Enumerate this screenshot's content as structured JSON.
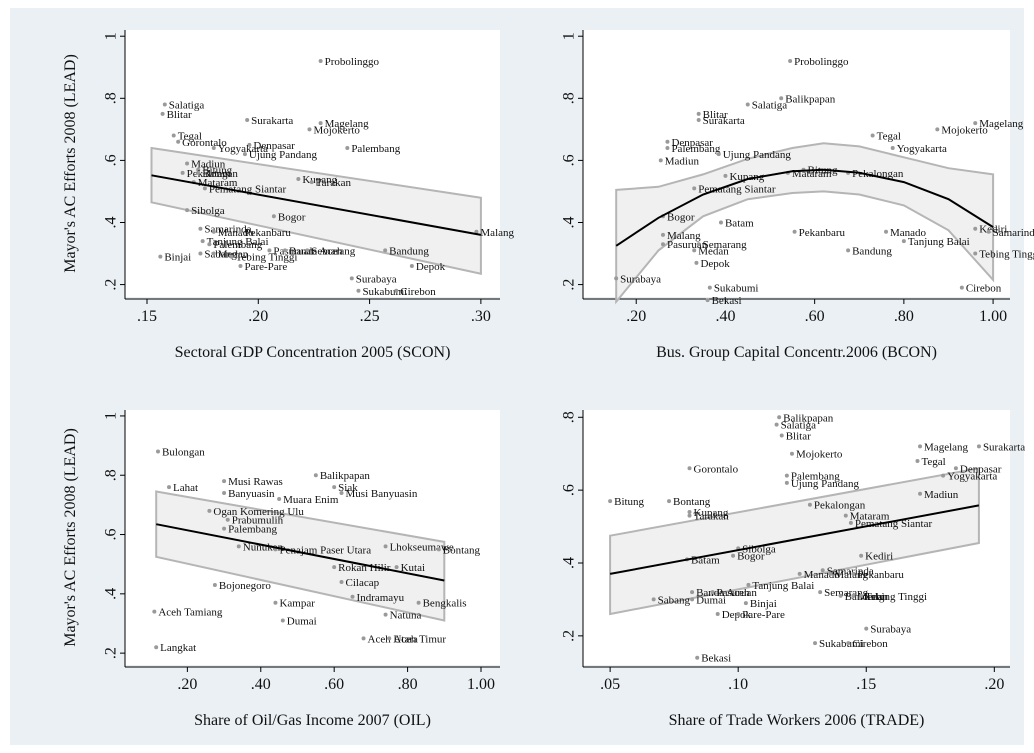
{
  "ylabel": "Mayor's AC Efforts 2008 (LEAD)",
  "chart_data": [
    {
      "type": "scatter",
      "xlabel": "Sectoral GDP Concentration 2005 (SCON)",
      "ylabel": "Mayor's AC Efforts 2008 (LEAD)",
      "xlim": [
        0.15,
        0.305
      ],
      "ylim": [
        0.16,
        1.02
      ],
      "xticks": [
        0.15,
        0.2,
        0.25,
        0.3
      ],
      "xtick_labels": [
        ".15",
        ".20",
        ".25",
        ".30"
      ],
      "yticks": [
        0.2,
        0.4,
        0.6,
        0.8,
        1.0
      ],
      "ytick_labels": [
        ".2",
        ".4",
        ".6",
        ".8",
        "1"
      ],
      "fit": "linear",
      "fit_line": [
        [
          0.152,
          0.552
        ],
        [
          0.3,
          0.36
        ]
      ],
      "ci_upper": [
        [
          0.152,
          0.64
        ],
        [
          0.3,
          0.48
        ]
      ],
      "ci_lower": [
        [
          0.152,
          0.465
        ],
        [
          0.3,
          0.235
        ]
      ],
      "points": [
        {
          "x": 0.228,
          "y": 0.92,
          "label": "Probolinggo"
        },
        {
          "x": 0.158,
          "y": 0.78,
          "label": "Salatiga"
        },
        {
          "x": 0.157,
          "y": 0.75,
          "label": "Blitar"
        },
        {
          "x": 0.195,
          "y": 0.73,
          "label": "Surakarta"
        },
        {
          "x": 0.228,
          "y": 0.72,
          "label": "Magelang"
        },
        {
          "x": 0.223,
          "y": 0.7,
          "label": "Mojokerto"
        },
        {
          "x": 0.162,
          "y": 0.68,
          "label": "Tegal"
        },
        {
          "x": 0.164,
          "y": 0.66,
          "label": "Gorontalo"
        },
        {
          "x": 0.196,
          "y": 0.65,
          "label": "Denpasar"
        },
        {
          "x": 0.18,
          "y": 0.64,
          "label": "Yogyakarta"
        },
        {
          "x": 0.24,
          "y": 0.64,
          "label": "Palembang"
        },
        {
          "x": 0.194,
          "y": 0.62,
          "label": "Ujung Pandang"
        },
        {
          "x": 0.168,
          "y": 0.59,
          "label": "Madiun"
        },
        {
          "x": 0.173,
          "y": 0.57,
          "label": "Bitung"
        },
        {
          "x": 0.166,
          "y": 0.56,
          "label": "Pekalongan"
        },
        {
          "x": 0.173,
          "y": 0.56,
          "label": "Batam"
        },
        {
          "x": 0.218,
          "y": 0.54,
          "label": "Kupang"
        },
        {
          "x": 0.224,
          "y": 0.53,
          "label": "Tarakan"
        },
        {
          "x": 0.171,
          "y": 0.53,
          "label": "Mataram"
        },
        {
          "x": 0.176,
          "y": 0.51,
          "label": "Pematang Siantar"
        },
        {
          "x": 0.168,
          "y": 0.44,
          "label": "Sibolga"
        },
        {
          "x": 0.207,
          "y": 0.42,
          "label": "Bogor"
        },
        {
          "x": 0.174,
          "y": 0.38,
          "label": "Samarinda"
        },
        {
          "x": 0.18,
          "y": 0.37,
          "label": "Manado"
        },
        {
          "x": 0.192,
          "y": 0.37,
          "label": "Pekanbaru"
        },
        {
          "x": 0.175,
          "y": 0.34,
          "label": "Tanjung Balai"
        },
        {
          "x": 0.178,
          "y": 0.33,
          "label": "Palembang"
        },
        {
          "x": 0.298,
          "y": 0.37,
          "label": "Malang"
        },
        {
          "x": 0.156,
          "y": 0.29,
          "label": "Binjai"
        },
        {
          "x": 0.174,
          "y": 0.3,
          "label": "Sabang"
        },
        {
          "x": 0.18,
          "y": 0.3,
          "label": "Medan"
        },
        {
          "x": 0.188,
          "y": 0.29,
          "label": "Tebing Tinggi"
        },
        {
          "x": 0.205,
          "y": 0.31,
          "label": "Pasuruan"
        },
        {
          "x": 0.212,
          "y": 0.31,
          "label": "Banda Aceh"
        },
        {
          "x": 0.222,
          "y": 0.31,
          "label": "Semarang"
        },
        {
          "x": 0.257,
          "y": 0.31,
          "label": "Bandung"
        },
        {
          "x": 0.192,
          "y": 0.26,
          "label": "Pare-Pare"
        },
        {
          "x": 0.269,
          "y": 0.26,
          "label": "Depok"
        },
        {
          "x": 0.242,
          "y": 0.22,
          "label": "Surabaya"
        },
        {
          "x": 0.245,
          "y": 0.18,
          "label": "Sukabumi"
        },
        {
          "x": 0.262,
          "y": 0.18,
          "label": "Cirebon"
        }
      ]
    },
    {
      "type": "scatter",
      "xlabel": "Bus. Group Capital Concentr.2006 (BCON)",
      "ylabel": "",
      "xlim": [
        0.13,
        1.02
      ],
      "ylim": [
        0.16,
        1.02
      ],
      "xticks": [
        0.2,
        0.4,
        0.6,
        0.8,
        1.0
      ],
      "xtick_labels": [
        ".20",
        ".40",
        ".60",
        ".80",
        "1.00"
      ],
      "yticks": [
        0.2,
        0.4,
        0.6,
        0.8,
        1.0
      ],
      "ytick_labels": [
        ".2",
        ".4",
        ".6",
        ".8",
        "1"
      ],
      "fit": "quadratic",
      "fit_curve": [
        [
          0.155,
          0.325
        ],
        [
          0.25,
          0.415
        ],
        [
          0.35,
          0.49
        ],
        [
          0.45,
          0.54
        ],
        [
          0.55,
          0.565
        ],
        [
          0.62,
          0.57
        ],
        [
          0.7,
          0.56
        ],
        [
          0.8,
          0.53
        ],
        [
          0.9,
          0.475
        ],
        [
          1.0,
          0.385
        ]
      ],
      "ci_upper": [
        [
          0.155,
          0.505
        ],
        [
          0.25,
          0.515
        ],
        [
          0.35,
          0.555
        ],
        [
          0.45,
          0.605
        ],
        [
          0.55,
          0.64
        ],
        [
          0.62,
          0.655
        ],
        [
          0.7,
          0.645
        ],
        [
          0.8,
          0.61
        ],
        [
          0.9,
          0.575
        ],
        [
          1.0,
          0.555
        ]
      ],
      "ci_lower": [
        [
          0.155,
          0.145
        ],
        [
          0.25,
          0.31
        ],
        [
          0.35,
          0.42
        ],
        [
          0.45,
          0.475
        ],
        [
          0.55,
          0.495
        ],
        [
          0.62,
          0.5
        ],
        [
          0.7,
          0.49
        ],
        [
          0.8,
          0.455
        ],
        [
          0.9,
          0.375
        ],
        [
          1.0,
          0.215
        ]
      ],
      "points": [
        {
          "x": 0.545,
          "y": 0.92,
          "label": "Probolinggo"
        },
        {
          "x": 0.525,
          "y": 0.8,
          "label": "Balikpapan"
        },
        {
          "x": 0.45,
          "y": 0.78,
          "label": "Salatiga"
        },
        {
          "x": 0.34,
          "y": 0.75,
          "label": "Blitar"
        },
        {
          "x": 0.34,
          "y": 0.73,
          "label": "Surakarta"
        },
        {
          "x": 0.96,
          "y": 0.72,
          "label": "Magelang"
        },
        {
          "x": 0.875,
          "y": 0.7,
          "label": "Mojokerto"
        },
        {
          "x": 0.73,
          "y": 0.68,
          "label": "Tegal"
        },
        {
          "x": 0.27,
          "y": 0.66,
          "label": "Denpasar"
        },
        {
          "x": 0.27,
          "y": 0.64,
          "label": "Palembang"
        },
        {
          "x": 0.775,
          "y": 0.64,
          "label": "Yogyakarta"
        },
        {
          "x": 0.385,
          "y": 0.62,
          "label": "Ujung Pandang"
        },
        {
          "x": 0.255,
          "y": 0.6,
          "label": "Madiun"
        },
        {
          "x": 0.575,
          "y": 0.57,
          "label": "Bitung"
        },
        {
          "x": 0.675,
          "y": 0.56,
          "label": "Pekalongan"
        },
        {
          "x": 0.54,
          "y": 0.56,
          "label": "Mataram"
        },
        {
          "x": 0.4,
          "y": 0.55,
          "label": "Kupang"
        },
        {
          "x": 0.33,
          "y": 0.51,
          "label": "Pematang Siantar"
        },
        {
          "x": 0.26,
          "y": 0.42,
          "label": "Bogor"
        },
        {
          "x": 0.39,
          "y": 0.4,
          "label": "Batam"
        },
        {
          "x": 0.96,
          "y": 0.38,
          "label": "Kediri"
        },
        {
          "x": 0.99,
          "y": 0.37,
          "label": "Samarinda"
        },
        {
          "x": 0.26,
          "y": 0.36,
          "label": "Malang"
        },
        {
          "x": 0.26,
          "y": 0.33,
          "label": "Pasuruan"
        },
        {
          "x": 0.34,
          "y": 0.33,
          "label": "Semarang"
        },
        {
          "x": 0.33,
          "y": 0.31,
          "label": "Medan"
        },
        {
          "x": 0.555,
          "y": 0.37,
          "label": "Pekanbaru"
        },
        {
          "x": 0.76,
          "y": 0.37,
          "label": "Manado"
        },
        {
          "x": 0.8,
          "y": 0.34,
          "label": "Tanjung Balai"
        },
        {
          "x": 0.675,
          "y": 0.31,
          "label": "Bandung"
        },
        {
          "x": 0.96,
          "y": 0.3,
          "label": "Tebing Tinggi"
        },
        {
          "x": 0.335,
          "y": 0.27,
          "label": "Depok"
        },
        {
          "x": 0.155,
          "y": 0.22,
          "label": "Surabaya"
        },
        {
          "x": 0.365,
          "y": 0.19,
          "label": "Sukabumi"
        },
        {
          "x": 0.36,
          "y": 0.15,
          "label": "Bekasi"
        },
        {
          "x": 0.93,
          "y": 0.19,
          "label": "Cirebon"
        }
      ]
    },
    {
      "type": "scatter",
      "xlabel": "Share of Oil/Gas Income 2007 (OIL)",
      "ylabel": "Mayor's AC Efforts 2008 (LEAD)",
      "xlim": [
        0.09,
        1.03
      ],
      "ylim": [
        0.16,
        1.02
      ],
      "xticks": [
        0.2,
        0.4,
        0.6,
        0.8,
        1.0
      ],
      "xtick_labels": [
        ".20",
        ".40",
        ".60",
        ".80",
        "1.00"
      ],
      "yticks": [
        0.2,
        0.4,
        0.6,
        0.8,
        1.0
      ],
      "ytick_labels": [
        ".2",
        ".4",
        ".6",
        ".8",
        "1"
      ],
      "fit": "linear",
      "fit_line": [
        [
          0.115,
          0.635
        ],
        [
          0.9,
          0.445
        ]
      ],
      "ci_upper": [
        [
          0.115,
          0.745
        ],
        [
          0.9,
          0.575
        ]
      ],
      "ci_lower": [
        [
          0.115,
          0.525
        ],
        [
          0.9,
          0.31
        ]
      ],
      "points": [
        {
          "x": 0.12,
          "y": 0.88,
          "label": "Bulongan"
        },
        {
          "x": 0.55,
          "y": 0.8,
          "label": "Balikpapan"
        },
        {
          "x": 0.3,
          "y": 0.78,
          "label": "Musi Rawas"
        },
        {
          "x": 0.15,
          "y": 0.76,
          "label": "Lahat"
        },
        {
          "x": 0.6,
          "y": 0.76,
          "label": "Siak"
        },
        {
          "x": 0.3,
          "y": 0.74,
          "label": "Banyuasin"
        },
        {
          "x": 0.62,
          "y": 0.74,
          "label": "Musi Banyuasin"
        },
        {
          "x": 0.45,
          "y": 0.72,
          "label": "Muara Enim"
        },
        {
          "x": 0.26,
          "y": 0.68,
          "label": "Ogan Komering Ulu"
        },
        {
          "x": 0.31,
          "y": 0.65,
          "label": "Prabumulih"
        },
        {
          "x": 0.3,
          "y": 0.62,
          "label": "Palembang"
        },
        {
          "x": 0.34,
          "y": 0.56,
          "label": "Nunukan"
        },
        {
          "x": 0.44,
          "y": 0.55,
          "label": "Penajam Paser Utara"
        },
        {
          "x": 0.74,
          "y": 0.56,
          "label": "Lhokseumawe"
        },
        {
          "x": 0.885,
          "y": 0.55,
          "label": "Bontang"
        },
        {
          "x": 0.6,
          "y": 0.49,
          "label": "Rokan Hilir"
        },
        {
          "x": 0.77,
          "y": 0.49,
          "label": "Kutai"
        },
        {
          "x": 0.62,
          "y": 0.44,
          "label": "Cilacap"
        },
        {
          "x": 0.275,
          "y": 0.43,
          "label": "Bojonegoro"
        },
        {
          "x": 0.65,
          "y": 0.39,
          "label": "Indramayu"
        },
        {
          "x": 0.83,
          "y": 0.37,
          "label": "Bengkalis"
        },
        {
          "x": 0.44,
          "y": 0.37,
          "label": "Kampar"
        },
        {
          "x": 0.74,
          "y": 0.33,
          "label": "Natuna"
        },
        {
          "x": 0.11,
          "y": 0.34,
          "label": "Aceh Tamiang"
        },
        {
          "x": 0.46,
          "y": 0.31,
          "label": "Dumai"
        },
        {
          "x": 0.68,
          "y": 0.25,
          "label": "Aceh Utara"
        },
        {
          "x": 0.75,
          "y": 0.25,
          "label": "Aceh Timur"
        },
        {
          "x": 0.115,
          "y": 0.22,
          "label": "Langkat"
        }
      ]
    },
    {
      "type": "scatter",
      "xlabel": "Share of Trade Workers 2006 (TRADE)",
      "ylabel": "",
      "xlim": [
        0.048,
        0.203
      ],
      "ylim": [
        0.12,
        0.82
      ],
      "xticks": [
        0.05,
        0.1,
        0.15,
        0.2
      ],
      "xtick_labels": [
        ".05",
        ".10",
        ".15",
        ".20"
      ],
      "yticks": [
        0.2,
        0.4,
        0.6,
        0.8
      ],
      "ytick_labels": [
        ".2",
        ".4",
        ".6",
        ".8"
      ],
      "fit": "linear",
      "fit_line": [
        [
          0.05,
          0.37
        ],
        [
          0.194,
          0.558
        ]
      ],
      "ci_upper": [
        [
          0.05,
          0.475
        ],
        [
          0.194,
          0.66
        ]
      ],
      "ci_lower": [
        [
          0.05,
          0.26
        ],
        [
          0.194,
          0.455
        ]
      ],
      "points": [
        {
          "x": 0.116,
          "y": 0.8,
          "label": "Balikpapan"
        },
        {
          "x": 0.115,
          "y": 0.78,
          "label": "Salatiga"
        },
        {
          "x": 0.117,
          "y": 0.75,
          "label": "Blitar"
        },
        {
          "x": 0.171,
          "y": 0.72,
          "label": "Magelang"
        },
        {
          "x": 0.194,
          "y": 0.72,
          "label": "Surakarta"
        },
        {
          "x": 0.121,
          "y": 0.7,
          "label": "Mojokerto"
        },
        {
          "x": 0.17,
          "y": 0.68,
          "label": "Tegal"
        },
        {
          "x": 0.081,
          "y": 0.66,
          "label": "Gorontalo"
        },
        {
          "x": 0.185,
          "y": 0.66,
          "label": "Denpasar"
        },
        {
          "x": 0.18,
          "y": 0.64,
          "label": "Yogyakarta"
        },
        {
          "x": 0.119,
          "y": 0.64,
          "label": "Palembang"
        },
        {
          "x": 0.119,
          "y": 0.62,
          "label": "Ujung Pandang"
        },
        {
          "x": 0.171,
          "y": 0.59,
          "label": "Madiun"
        },
        {
          "x": 0.05,
          "y": 0.57,
          "label": "Bitung"
        },
        {
          "x": 0.073,
          "y": 0.57,
          "label": "Bontang"
        },
        {
          "x": 0.128,
          "y": 0.56,
          "label": "Pekalongan"
        },
        {
          "x": 0.081,
          "y": 0.54,
          "label": "Kupang"
        },
        {
          "x": 0.081,
          "y": 0.53,
          "label": "Tarakan"
        },
        {
          "x": 0.142,
          "y": 0.53,
          "label": "Mataram"
        },
        {
          "x": 0.144,
          "y": 0.51,
          "label": "Pematang Siantar"
        },
        {
          "x": 0.1,
          "y": 0.44,
          "label": "Sibolga"
        },
        {
          "x": 0.098,
          "y": 0.42,
          "label": "Bogor"
        },
        {
          "x": 0.08,
          "y": 0.41,
          "label": "Batam"
        },
        {
          "x": 0.148,
          "y": 0.42,
          "label": "Kediri"
        },
        {
          "x": 0.133,
          "y": 0.38,
          "label": "Samarinda"
        },
        {
          "x": 0.124,
          "y": 0.37,
          "label": "Manado"
        },
        {
          "x": 0.136,
          "y": 0.37,
          "label": "Malang"
        },
        {
          "x": 0.145,
          "y": 0.37,
          "label": "Pekanbaru"
        },
        {
          "x": 0.104,
          "y": 0.34,
          "label": "Tanjung Balai"
        },
        {
          "x": 0.082,
          "y": 0.32,
          "label": "Banda Aceh"
        },
        {
          "x": 0.09,
          "y": 0.32,
          "label": "Pasuruan"
        },
        {
          "x": 0.132,
          "y": 0.32,
          "label": "Semarang"
        },
        {
          "x": 0.14,
          "y": 0.31,
          "label": "Bandung"
        },
        {
          "x": 0.145,
          "y": 0.31,
          "label": "Medan"
        },
        {
          "x": 0.148,
          "y": 0.31,
          "label": "Tebing Tinggi"
        },
        {
          "x": 0.067,
          "y": 0.3,
          "label": "Sabang"
        },
        {
          "x": 0.082,
          "y": 0.3,
          "label": "Dumai"
        },
        {
          "x": 0.103,
          "y": 0.29,
          "label": "Binjai"
        },
        {
          "x": 0.092,
          "y": 0.26,
          "label": "Depok"
        },
        {
          "x": 0.1,
          "y": 0.26,
          "label": "Pare-Pare"
        },
        {
          "x": 0.15,
          "y": 0.22,
          "label": "Surabaya"
        },
        {
          "x": 0.13,
          "y": 0.18,
          "label": "Sukabumi"
        },
        {
          "x": 0.143,
          "y": 0.18,
          "label": "Cirebon"
        },
        {
          "x": 0.084,
          "y": 0.14,
          "label": "Bekasi"
        }
      ]
    }
  ]
}
